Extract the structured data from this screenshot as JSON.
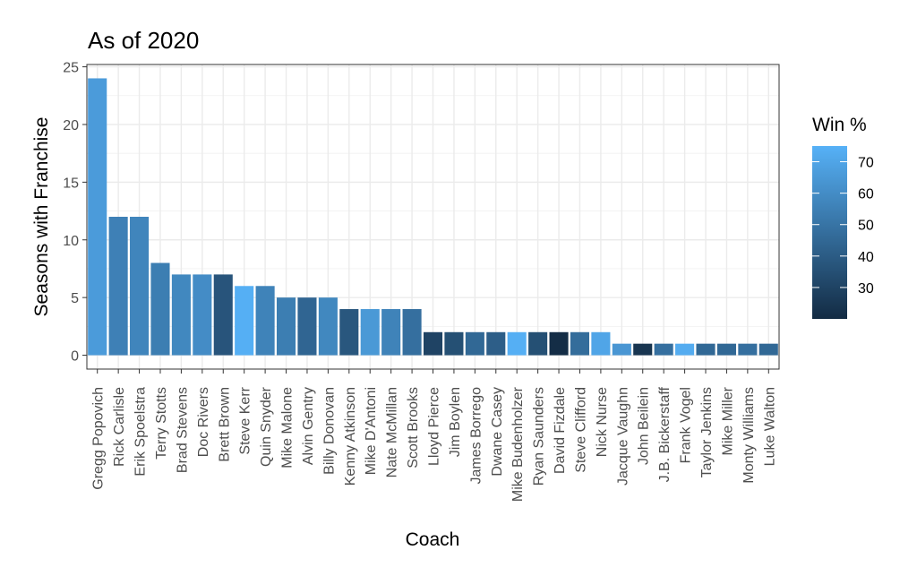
{
  "chart_data": {
    "type": "bar",
    "title": "As of 2020",
    "xlabel": "Coach",
    "ylabel": "Seasons with Franchise",
    "ylim": [
      -1.2,
      25.2
    ],
    "yticks": [
      0,
      5,
      10,
      15,
      20,
      25
    ],
    "grid": true,
    "legend": {
      "title": "Win %",
      "position": "right",
      "type": "colorbar",
      "range": [
        20,
        75
      ],
      "ticks": [
        30,
        40,
        50,
        60,
        70
      ],
      "color_low": "#132b43",
      "color_high": "#56b1f7"
    },
    "categories": [
      "Gregg Popovich",
      "Rick Carlisle",
      "Erik Spoelstra",
      "Terry Stotts",
      "Brad Stevens",
      "Doc Rivers",
      "Brett Brown",
      "Steve Kerr",
      "Quin Snyder",
      "Mike Malone",
      "Alvin Gentry",
      "Billy Donovan",
      "Kenny Atkinson",
      "Mike D'Antoni",
      "Nate McMillan",
      "Scott Brooks",
      "Lloyd Pierce",
      "Jim Boylen",
      "James Borrego",
      "Dwane Casey",
      "Mike Budenholzer",
      "Ryan Saunders",
      "David Fizdale",
      "Steve Clifford",
      "Nick Nurse",
      "Jacque Vaughn",
      "John Beilein",
      "J.B. Bickerstaff",
      "Frank Vogel",
      "Taylor Jenkins",
      "Mike Miller",
      "Monty Williams",
      "Luke Walton"
    ],
    "values": [
      24,
      12,
      12,
      8,
      7,
      7,
      7,
      6,
      6,
      5,
      5,
      5,
      4,
      4,
      4,
      4,
      2,
      2,
      2,
      2,
      2,
      2,
      2,
      2,
      2,
      1,
      1,
      1,
      1,
      1,
      1,
      1,
      1
    ],
    "win_pct": [
      66,
      55,
      57,
      54,
      58,
      60,
      37,
      74,
      56,
      54,
      44,
      58,
      38,
      65,
      56,
      48,
      30,
      35,
      45,
      41,
      74,
      35,
      21,
      47,
      70,
      64,
      24,
      48,
      73,
      45,
      45,
      48,
      45
    ]
  }
}
